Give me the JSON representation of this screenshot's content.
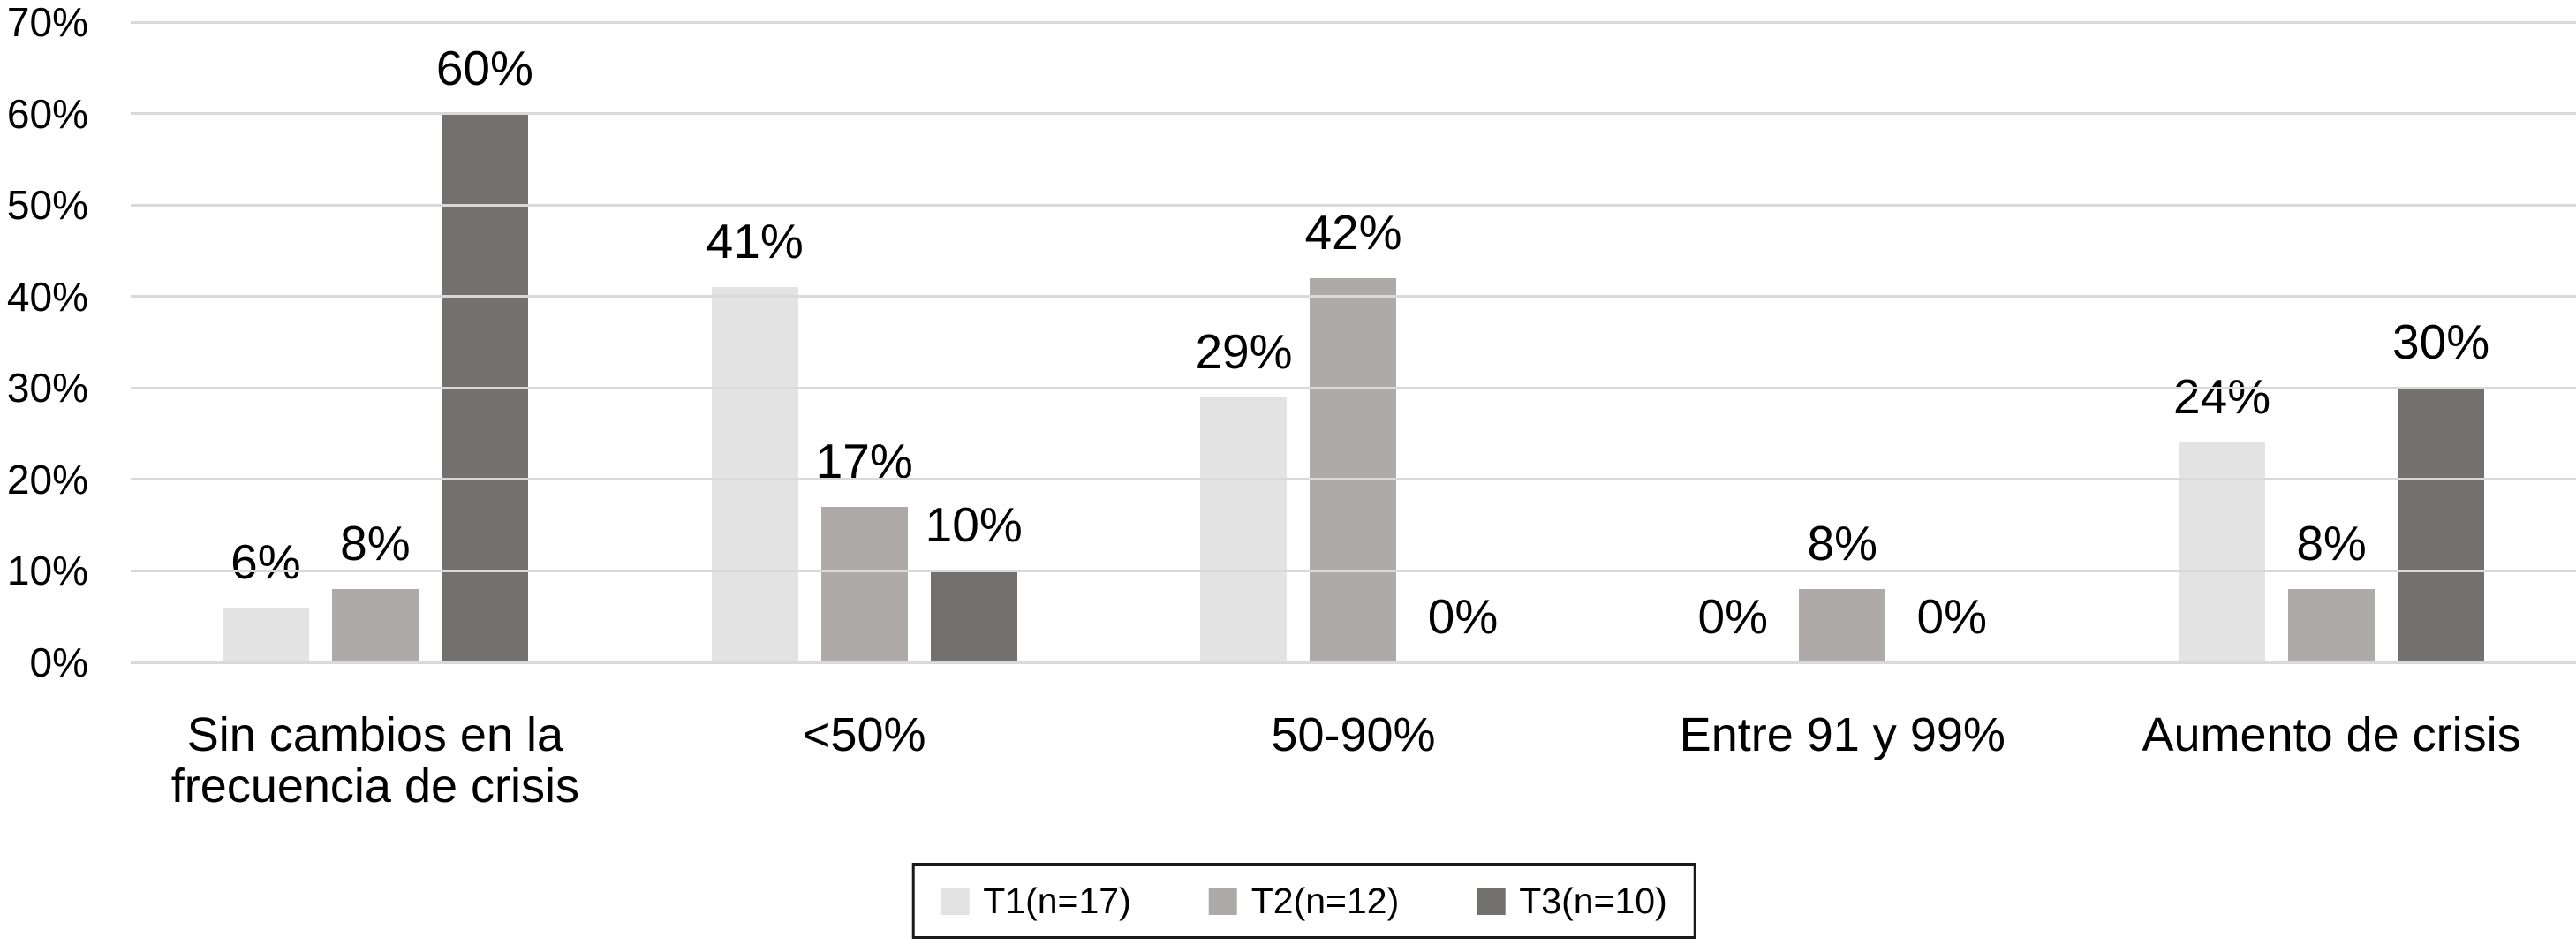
{
  "chart_data": {
    "type": "bar",
    "title": "",
    "xlabel": "",
    "ylabel": "",
    "categories": [
      "Sin cambios en la frecuencia de crisis",
      "<50%",
      "50-90%",
      "Entre 91 y 99%",
      "Aumento de crisis"
    ],
    "category_lines": [
      [
        "Sin cambios en la",
        "frecuencia de crisis"
      ],
      [
        "<50%"
      ],
      [
        "50-90%"
      ],
      [
        "Entre 91 y 99%"
      ],
      [
        "Aumento de crisis"
      ]
    ],
    "series": [
      {
        "name": "T1(n=17)",
        "color": "#e4e3e3",
        "values": [
          6,
          41,
          29,
          0,
          24
        ]
      },
      {
        "name": "T2(n=12)",
        "color": "#aeaaa9",
        "values": [
          8,
          17,
          42,
          8,
          8
        ]
      },
      {
        "name": "T3(n=10)",
        "color": "#737070",
        "values": [
          60,
          10,
          0,
          0,
          30
        ]
      }
    ],
    "data_labels": true,
    "value_suffix": "%",
    "ylim": [
      0,
      70
    ],
    "ytick_step": 10,
    "yticks": [
      "70%",
      "60%",
      "50%",
      "40%",
      "30%",
      "20%",
      "10%",
      "0%"
    ],
    "grid": true,
    "legend_position": "bottom",
    "colors": {
      "gridline": "#d9d9d9",
      "text": "#000000",
      "background": "#ffffff",
      "legend_border": "#1a1a1a"
    }
  }
}
